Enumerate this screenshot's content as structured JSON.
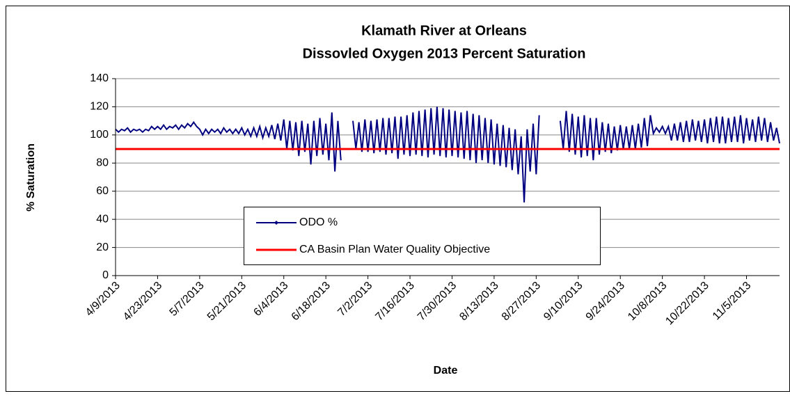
{
  "chart_data": {
    "type": "line",
    "title": [
      "Klamath River at Orleans",
      "Dissovled Oxygen  2013 Percent Saturation"
    ],
    "xlabel": "Date",
    "ylabel": "% Saturation",
    "xlim": [
      "4/9/2013",
      "11/16/2013"
    ],
    "xticks": [
      "4/9/2013",
      "4/23/2013",
      "5/7/2013",
      "5/21/2013",
      "6/4/2013",
      "6/18/2013",
      "7/2/2013",
      "7/16/2013",
      "7/30/2013",
      "8/13/2013",
      "8/27/2013",
      "9/10/2013",
      "9/24/2013",
      "10/8/2013",
      "10/22/2013",
      "11/5/2013"
    ],
    "ylim": [
      0,
      140
    ],
    "yticks": [
      0,
      20,
      40,
      60,
      80,
      100,
      120,
      140
    ],
    "grid": true,
    "series": [
      {
        "name": "ODO %",
        "color": "#000080",
        "x": [
          "4/9/2013",
          "4/10/2013",
          "4/11/2013",
          "4/12/2013",
          "4/13/2013",
          "4/14/2013",
          "4/15/2013",
          "4/16/2013",
          "4/17/2013",
          "4/18/2013",
          "4/19/2013",
          "4/20/2013",
          "4/21/2013",
          "4/22/2013",
          "4/23/2013",
          "4/24/2013",
          "4/25/2013",
          "4/26/2013",
          "4/27/2013",
          "4/28/2013",
          "4/29/2013",
          "4/30/2013",
          "5/1/2013",
          "5/2/2013",
          "5/3/2013",
          "5/4/2013",
          "5/5/2013",
          "5/6/2013",
          "5/7/2013",
          "5/8/2013",
          "5/9/2013",
          "5/10/2013",
          "5/11/2013",
          "5/12/2013",
          "5/13/2013",
          "5/14/2013",
          "5/15/2013",
          "5/16/2013",
          "5/17/2013",
          "5/18/2013",
          "5/19/2013",
          "5/20/2013",
          "5/21/2013",
          "5/22/2013",
          "5/23/2013",
          "5/24/2013",
          "5/25/2013",
          "5/26/2013",
          "5/27/2013",
          "5/28/2013",
          "5/29/2013",
          "5/30/2013",
          "5/31/2013",
          "6/1/2013",
          "6/2/2013",
          "6/3/2013",
          "6/4/2013",
          "6/5/2013",
          "6/6/2013",
          "6/7/2013",
          "6/8/2013",
          "6/9/2013",
          "6/10/2013",
          "6/11/2013",
          "6/12/2013",
          "6/13/2013",
          "6/14/2013",
          "6/15/2013",
          "6/16/2013",
          "6/17/2013",
          "6/18/2013",
          "6/19/2013",
          "6/20/2013",
          "6/21/2013",
          "6/22/2013",
          "6/23/2013",
          "6/24/2013",
          "6/25/2013",
          "6/26/2013",
          "6/27/2013",
          "6/28/2013",
          "6/29/2013",
          "6/30/2013",
          "7/1/2013",
          "7/2/2013",
          "7/3/2013",
          "7/4/2013",
          "7/5/2013",
          "7/6/2013",
          "7/7/2013",
          "7/8/2013",
          "7/9/2013",
          "7/10/2013",
          "7/11/2013",
          "7/12/2013",
          "7/13/2013",
          "7/14/2013",
          "7/15/2013",
          "7/16/2013",
          "7/17/2013",
          "7/18/2013",
          "7/19/2013",
          "7/20/2013",
          "7/21/2013",
          "7/22/2013",
          "7/23/2013",
          "7/24/2013",
          "7/25/2013",
          "7/26/2013",
          "7/27/2013",
          "7/28/2013",
          "7/29/2013",
          "7/30/2013",
          "7/31/2013",
          "8/1/2013",
          "8/2/2013",
          "8/3/2013",
          "8/4/2013",
          "8/5/2013",
          "8/6/2013",
          "8/7/2013",
          "8/8/2013",
          "8/9/2013",
          "8/10/2013",
          "8/11/2013",
          "8/12/2013",
          "8/13/2013",
          "8/14/2013",
          "8/15/2013",
          "8/16/2013",
          "8/17/2013",
          "8/18/2013",
          "8/19/2013",
          "8/20/2013",
          "8/21/2013",
          "8/22/2013",
          "8/23/2013",
          "8/24/2013",
          "8/25/2013",
          "8/26/2013",
          "8/27/2013",
          "8/28/2013",
          "8/29/2013",
          "8/30/2013",
          "8/31/2013",
          "9/1/2013",
          "9/2/2013",
          "9/3/2013",
          "9/4/2013",
          "9/5/2013",
          "9/6/2013",
          "9/7/2013",
          "9/8/2013",
          "9/9/2013",
          "9/10/2013",
          "9/11/2013",
          "9/12/2013",
          "9/13/2013",
          "9/14/2013",
          "9/15/2013",
          "9/16/2013",
          "9/17/2013",
          "9/18/2013",
          "9/19/2013",
          "9/20/2013",
          "9/21/2013",
          "9/22/2013",
          "9/23/2013",
          "9/24/2013",
          "9/25/2013",
          "9/26/2013",
          "9/27/2013",
          "9/28/2013",
          "9/29/2013",
          "9/30/2013",
          "10/1/2013",
          "10/2/2013",
          "10/3/2013",
          "10/4/2013",
          "10/5/2013",
          "10/6/2013",
          "10/7/2013",
          "10/8/2013",
          "10/9/2013",
          "10/10/2013",
          "10/11/2013",
          "10/12/2013",
          "10/13/2013",
          "10/14/2013",
          "10/15/2013",
          "10/16/2013",
          "10/17/2013",
          "10/18/2013",
          "10/19/2013",
          "10/20/2013",
          "10/21/2013",
          "10/22/2013",
          "10/23/2013",
          "10/24/2013",
          "10/25/2013",
          "10/26/2013",
          "10/27/2013",
          "10/28/2013",
          "10/29/2013",
          "10/30/2013",
          "10/31/2013",
          "11/1/2013",
          "11/2/2013",
          "11/3/2013",
          "11/4/2013",
          "11/5/2013",
          "11/6/2013",
          "11/7/2013",
          "11/8/2013",
          "11/9/2013",
          "11/10/2013",
          "11/11/2013",
          "11/12/2013",
          "11/13/2013",
          "11/14/2013",
          "11/15/2013",
          "11/16/2013"
        ],
        "values": [
          104,
          102,
          104,
          103,
          105,
          102,
          104,
          103,
          104,
          102,
          104,
          103,
          106,
          104,
          106,
          104,
          107,
          104,
          106,
          105,
          107,
          104,
          107,
          105,
          108,
          106,
          109,
          106,
          104,
          100,
          104,
          101,
          104,
          102,
          104,
          101,
          105,
          102,
          104,
          101,
          104,
          101,
          105,
          100,
          104,
          99,
          105,
          99,
          106,
          98,
          105,
          99,
          107,
          97,
          108,
          96,
          111,
          90,
          110,
          89,
          109,
          85,
          110,
          88,
          108,
          79,
          110,
          85,
          112,
          86,
          108,
          82,
          116,
          74,
          110,
          82,
          null,
          null,
          null,
          110,
          90,
          109,
          88,
          111,
          88,
          110,
          87,
          111,
          88,
          112,
          86,
          112,
          87,
          113,
          83,
          113,
          86,
          114,
          85,
          116,
          86,
          117,
          85,
          118,
          84,
          119,
          86,
          120,
          85,
          119,
          84,
          118,
          85,
          117,
          84,
          116,
          83,
          117,
          82,
          115,
          80,
          114,
          82,
          112,
          80,
          111,
          79,
          108,
          78,
          107,
          77,
          105,
          75,
          104,
          72,
          99,
          52,
          104,
          74,
          108,
          72,
          114,
          null,
          null,
          null,
          null,
          null,
          null,
          110,
          90,
          117,
          88,
          115,
          86,
          113,
          84,
          114,
          85,
          112,
          82,
          112,
          86,
          109,
          88,
          108,
          87,
          106,
          89,
          107,
          90,
          106,
          90,
          107,
          90,
          108,
          91,
          112,
          92,
          114,
          101,
          105,
          102,
          106,
          101,
          106,
          96,
          108,
          96,
          109,
          95,
          110,
          95,
          111,
          96,
          110,
          95,
          111,
          94,
          112,
          95,
          113,
          94,
          113,
          94,
          112,
          95,
          113,
          95,
          114,
          94,
          112,
          96,
          111,
          95,
          113,
          96,
          112,
          95,
          109,
          96,
          105,
          94
        ]
      },
      {
        "name": "CA Basin Plan Water Quality Objective",
        "color": "#ff0000",
        "x": [
          "4/9/2013",
          "11/16/2013"
        ],
        "values": [
          90,
          90
        ]
      }
    ]
  }
}
